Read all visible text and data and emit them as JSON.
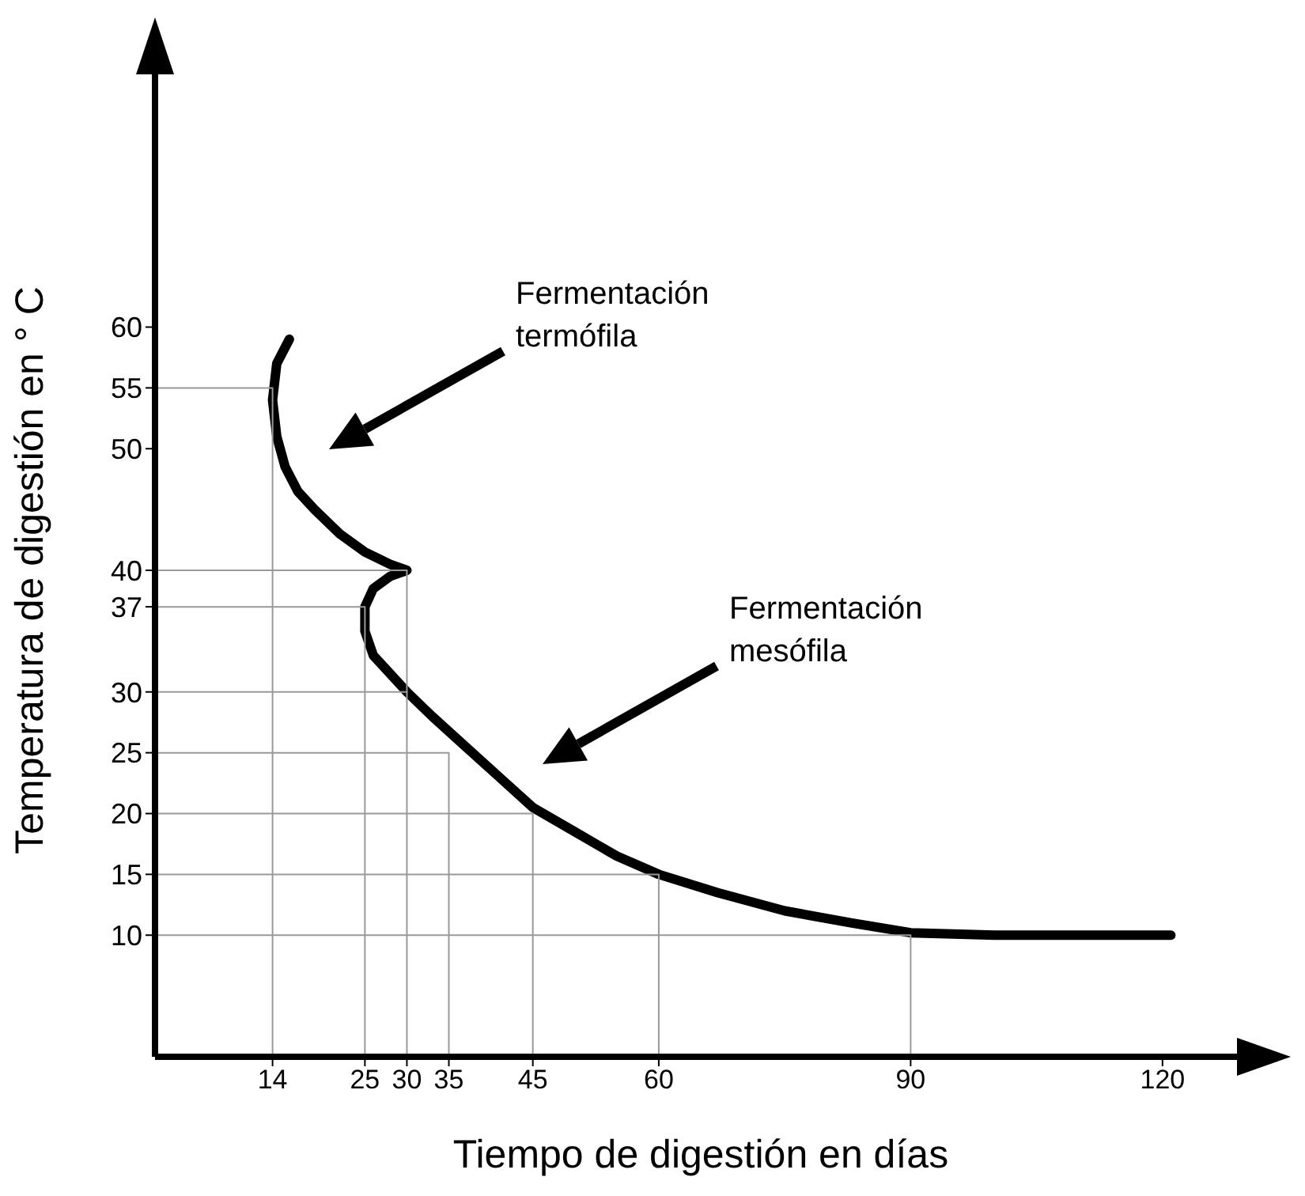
{
  "chart_data": {
    "type": "line",
    "xlabel": "Tiempo de digestión en días",
    "ylabel": "Temperatura de digestión en ° C",
    "xlim": [
      0,
      130
    ],
    "ylim": [
      0,
      80
    ],
    "xticks": [
      14,
      25,
      30,
      35,
      45,
      60,
      90,
      120
    ],
    "yticks": [
      10,
      15,
      20,
      25,
      30,
      37,
      40,
      50,
      55,
      60
    ],
    "grid": false,
    "marker": "none",
    "series": [
      {
        "color": "#000000",
        "x": [
          16,
          14.5,
          14,
          14.5,
          15.5,
          17,
          19,
          22,
          25,
          28,
          30,
          28,
          26,
          25,
          25,
          26,
          28,
          30,
          33,
          37,
          41,
          45,
          50,
          55,
          60,
          67,
          75,
          83,
          90,
          100,
          110,
          121
        ],
        "values": [
          59,
          57,
          54,
          51,
          48.5,
          46.5,
          45,
          43,
          41.5,
          40.5,
          40,
          39.5,
          38.5,
          37,
          35,
          33,
          31.5,
          30,
          28,
          25.5,
          23,
          20.5,
          18.5,
          16.5,
          15,
          13.5,
          12,
          11,
          10.2,
          10,
          10,
          10
        ]
      },
      {
        "color": "#999999",
        "x": [
          0,
          14,
          14
        ],
        "values": [
          55,
          55,
          0
        ]
      },
      {
        "color": "#999999",
        "x": [
          0,
          25,
          25
        ],
        "values": [
          37,
          37,
          0
        ]
      },
      {
        "color": "#999999",
        "x": [
          0,
          30,
          30
        ],
        "values": [
          40,
          40,
          0
        ]
      },
      {
        "color": "#999999",
        "x": [
          0,
          30
        ],
        "values": [
          30,
          30
        ]
      },
      {
        "color": "#999999",
        "x": [
          0,
          35,
          35
        ],
        "values": [
          25,
          25,
          0
        ]
      },
      {
        "color": "#999999",
        "x": [
          0,
          45,
          45
        ],
        "values": [
          20,
          20,
          0
        ]
      },
      {
        "color": "#999999",
        "x": [
          0,
          60,
          60
        ],
        "values": [
          15,
          15,
          0
        ]
      },
      {
        "color": "#999999",
        "x": [
          0,
          90,
          90
        ],
        "values": [
          10,
          10,
          0
        ]
      }
    ],
    "annotations": [
      "Fermentación termófila",
      "Fermentación mesófila"
    ]
  }
}
